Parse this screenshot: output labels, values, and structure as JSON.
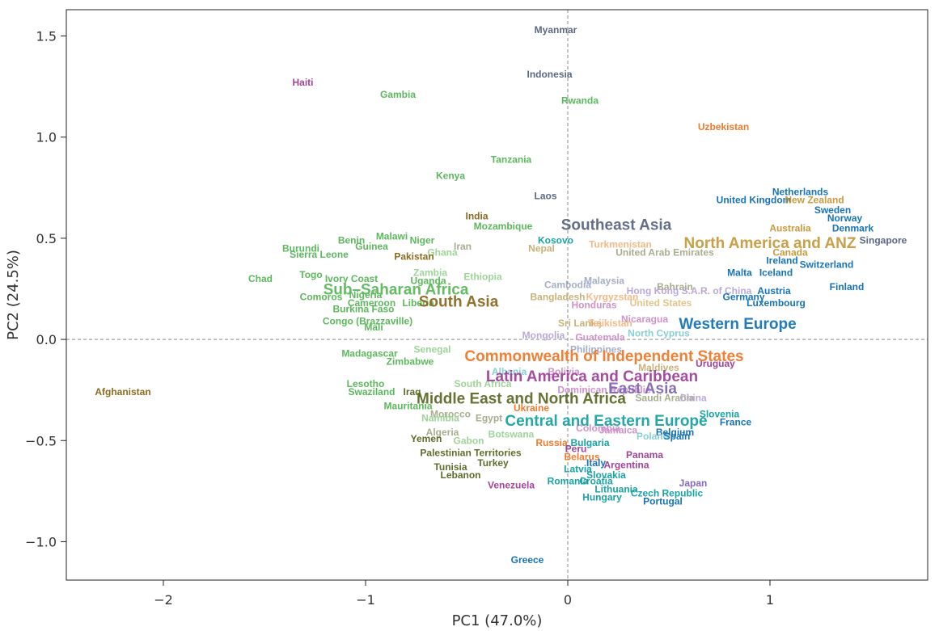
{
  "chart_data": {
    "type": "scatter",
    "title": "",
    "xlabel": "PC1 (47.0%)",
    "ylabel": "PC2 (24.5%)",
    "xlim": [
      -2.48,
      1.78
    ],
    "ylim": [
      -1.19,
      1.63
    ],
    "xticks": [
      {
        "value": -2,
        "label": "−2"
      },
      {
        "value": -1,
        "label": "−1"
      },
      {
        "value": 0,
        "label": "0"
      },
      {
        "value": 1,
        "label": "1"
      }
    ],
    "yticks": [
      {
        "value": -1.0,
        "label": "−1.0"
      },
      {
        "value": -0.5,
        "label": "−0.5"
      },
      {
        "value": 0.0,
        "label": "0.0"
      },
      {
        "value": 0.5,
        "label": "0.5"
      },
      {
        "value": 1.0,
        "label": "1.0"
      },
      {
        "value": 1.5,
        "label": "1.5"
      }
    ],
    "reference_lines": {
      "x": 0,
      "y": 0,
      "style": "dashed"
    },
    "grid": false,
    "colors": {
      "ssa": "#5cb85c",
      "ssa_light": "#9fd39a",
      "sa": "#8b6b1f",
      "sa_light": "#c8b27a",
      "mena": "#5e6c2b",
      "mena_light": "#a8ad8e",
      "sea": "#5b6880",
      "sea_light": "#a6aec7",
      "lac": "#a0449a",
      "lac_light": "#cf92c9",
      "cis": "#f07a2c",
      "cis_light": "#f3b98a",
      "cee": "#1aa3a3",
      "cee_light": "#88cfd3",
      "we": "#1673b8",
      "nanz": "#c79a3e",
      "nanz_light": "#e2c488",
      "ea": "#8268b5",
      "ea_light": "#b9a9d6"
    },
    "regions": [
      {
        "label": "Southeast Asia",
        "x": 0.24,
        "y": 0.57,
        "color": "sea"
      },
      {
        "label": "North America and ANZ",
        "x": 1.0,
        "y": 0.48,
        "color": "nanz"
      },
      {
        "label": "Sub–Saharan Africa",
        "x": -0.85,
        "y": 0.25,
        "color": "ssa"
      },
      {
        "label": "South Asia",
        "x": -0.54,
        "y": 0.19,
        "color": "sa"
      },
      {
        "label": "Western Europe",
        "x": 0.84,
        "y": 0.08,
        "color": "we"
      },
      {
        "label": "Commonwealth of Independent States",
        "x": 0.18,
        "y": -0.08,
        "color": "cis"
      },
      {
        "label": "Latin America and Caribbean",
        "x": 0.12,
        "y": -0.18,
        "color": "lac"
      },
      {
        "label": "East Asia",
        "x": 0.37,
        "y": -0.24,
        "color": "ea"
      },
      {
        "label": "Middle East and North Africa",
        "x": -0.23,
        "y": -0.29,
        "color": "mena"
      },
      {
        "label": "Central and Eastern Europe",
        "x": 0.19,
        "y": -0.4,
        "color": "cee"
      }
    ],
    "points": [
      {
        "label": "Myanmar",
        "x": -0.06,
        "y": 1.53,
        "color": "sea"
      },
      {
        "label": "Indonesia",
        "x": -0.09,
        "y": 1.31,
        "color": "sea"
      },
      {
        "label": "Haiti",
        "x": -1.31,
        "y": 1.27,
        "color": "lac"
      },
      {
        "label": "Gambia",
        "x": -0.84,
        "y": 1.21,
        "color": "ssa"
      },
      {
        "label": "Rwanda",
        "x": 0.06,
        "y": 1.18,
        "color": "ssa"
      },
      {
        "label": "Uzbekistan",
        "x": 0.77,
        "y": 1.05,
        "color": "cis"
      },
      {
        "label": "Tanzania",
        "x": -0.28,
        "y": 0.89,
        "color": "ssa"
      },
      {
        "label": "Kenya",
        "x": -0.58,
        "y": 0.81,
        "color": "ssa"
      },
      {
        "label": "Laos",
        "x": -0.11,
        "y": 0.71,
        "color": "sea"
      },
      {
        "label": "Netherlands",
        "x": 1.15,
        "y": 0.73,
        "color": "we"
      },
      {
        "label": "United Kingdom",
        "x": 0.92,
        "y": 0.69,
        "color": "we"
      },
      {
        "label": "New Zealand",
        "x": 1.22,
        "y": 0.69,
        "color": "nanz"
      },
      {
        "label": "Sweden",
        "x": 1.31,
        "y": 0.64,
        "color": "we"
      },
      {
        "label": "Norway",
        "x": 1.37,
        "y": 0.6,
        "color": "we"
      },
      {
        "label": "Denmark",
        "x": 1.41,
        "y": 0.55,
        "color": "we"
      },
      {
        "label": "Singapore",
        "x": 1.56,
        "y": 0.49,
        "color": "sea"
      },
      {
        "label": "India",
        "x": -0.45,
        "y": 0.61,
        "color": "sa"
      },
      {
        "label": "Mozambique",
        "x": -0.32,
        "y": 0.56,
        "color": "ssa"
      },
      {
        "label": "Australia",
        "x": 1.1,
        "y": 0.55,
        "color": "nanz"
      },
      {
        "label": "Canada",
        "x": 1.1,
        "y": 0.43,
        "color": "nanz"
      },
      {
        "label": "Kosovo",
        "x": -0.06,
        "y": 0.49,
        "color": "cee"
      },
      {
        "label": "Turkmenistan",
        "x": 0.26,
        "y": 0.47,
        "color": "cis_light"
      },
      {
        "label": "United Arab Emirates",
        "x": 0.48,
        "y": 0.43,
        "color": "mena_light"
      },
      {
        "label": "Malawi",
        "x": -0.87,
        "y": 0.51,
        "color": "ssa"
      },
      {
        "label": "Niger",
        "x": -0.72,
        "y": 0.49,
        "color": "ssa"
      },
      {
        "label": "Benin",
        "x": -1.07,
        "y": 0.49,
        "color": "ssa"
      },
      {
        "label": "Guinea",
        "x": -0.97,
        "y": 0.46,
        "color": "ssa"
      },
      {
        "label": "Burundi",
        "x": -1.32,
        "y": 0.45,
        "color": "ssa"
      },
      {
        "label": "Iran",
        "x": -0.52,
        "y": 0.46,
        "color": "mena_light"
      },
      {
        "label": "Ghana",
        "x": -0.62,
        "y": 0.43,
        "color": "ssa_light"
      },
      {
        "label": "Nepal",
        "x": -0.13,
        "y": 0.45,
        "color": "sa_light"
      },
      {
        "label": "Sierra Leone",
        "x": -1.23,
        "y": 0.42,
        "color": "ssa"
      },
      {
        "label": "Pakistan",
        "x": -0.76,
        "y": 0.41,
        "color": "sa"
      },
      {
        "label": "Ireland",
        "x": 1.06,
        "y": 0.39,
        "color": "we"
      },
      {
        "label": "Switzerland",
        "x": 1.28,
        "y": 0.37,
        "color": "we"
      },
      {
        "label": "Malta",
        "x": 0.85,
        "y": 0.33,
        "color": "we"
      },
      {
        "label": "Iceland",
        "x": 1.03,
        "y": 0.33,
        "color": "we"
      },
      {
        "label": "Chad",
        "x": -1.52,
        "y": 0.3,
        "color": "ssa"
      },
      {
        "label": "Togo",
        "x": -1.27,
        "y": 0.32,
        "color": "ssa"
      },
      {
        "label": "Zambia",
        "x": -0.68,
        "y": 0.33,
        "color": "ssa_light"
      },
      {
        "label": "Ivory Coast",
        "x": -1.07,
        "y": 0.3,
        "color": "ssa"
      },
      {
        "label": "Uganda",
        "x": -0.69,
        "y": 0.29,
        "color": "ssa"
      },
      {
        "label": "Ethiopia",
        "x": -0.42,
        "y": 0.31,
        "color": "ssa_light"
      },
      {
        "label": "Malaysia",
        "x": 0.18,
        "y": 0.29,
        "color": "sea_light"
      },
      {
        "label": "Cambodia",
        "x": 0.0,
        "y": 0.27,
        "color": "sea_light"
      },
      {
        "label": "Bahrain",
        "x": 0.53,
        "y": 0.26,
        "color": "mena_light"
      },
      {
        "label": "Finland",
        "x": 1.38,
        "y": 0.26,
        "color": "we"
      },
      {
        "label": "Austria",
        "x": 1.02,
        "y": 0.24,
        "color": "we"
      },
      {
        "label": "Hong Kong S.A.R. of China",
        "x": 0.6,
        "y": 0.24,
        "color": "ea_light"
      },
      {
        "label": "Nigeria",
        "x": -1.0,
        "y": 0.22,
        "color": "ssa"
      },
      {
        "label": "Comoros",
        "x": -1.22,
        "y": 0.21,
        "color": "ssa"
      },
      {
        "label": "Kyrgyzstan",
        "x": 0.22,
        "y": 0.21,
        "color": "cis_light"
      },
      {
        "label": "Bangladesh",
        "x": -0.05,
        "y": 0.21,
        "color": "sa_light"
      },
      {
        "label": "Germany",
        "x": 0.87,
        "y": 0.21,
        "color": "we"
      },
      {
        "label": "Cameroon",
        "x": -0.97,
        "y": 0.18,
        "color": "ssa"
      },
      {
        "label": "Liberia",
        "x": -0.74,
        "y": 0.18,
        "color": "ssa"
      },
      {
        "label": "Honduras",
        "x": 0.13,
        "y": 0.17,
        "color": "lac_light"
      },
      {
        "label": "United States",
        "x": 0.46,
        "y": 0.18,
        "color": "nanz_light"
      },
      {
        "label": "Luxembourg",
        "x": 1.03,
        "y": 0.18,
        "color": "we"
      },
      {
        "label": "Burkina Faso",
        "x": -1.01,
        "y": 0.15,
        "color": "ssa"
      },
      {
        "label": "Nicaragua",
        "x": 0.38,
        "y": 0.1,
        "color": "lac_light"
      },
      {
        "label": "Congo (Brazzaville)",
        "x": -0.99,
        "y": 0.09,
        "color": "ssa"
      },
      {
        "label": "Sri Lanka",
        "x": 0.06,
        "y": 0.08,
        "color": "sa_light"
      },
      {
        "label": "Tajikistan",
        "x": 0.21,
        "y": 0.08,
        "color": "cis_light"
      },
      {
        "label": "Mali",
        "x": -0.96,
        "y": 0.06,
        "color": "ssa"
      },
      {
        "label": "North Cyprus",
        "x": 0.45,
        "y": 0.03,
        "color": "cee_light"
      },
      {
        "label": "Mongolia",
        "x": -0.12,
        "y": 0.02,
        "color": "ea_light"
      },
      {
        "label": "Guatemala",
        "x": 0.16,
        "y": 0.01,
        "color": "lac_light"
      },
      {
        "label": "Philippines",
        "x": 0.14,
        "y": -0.05,
        "color": "sea_light"
      },
      {
        "label": "Madagascar",
        "x": -0.98,
        "y": -0.07,
        "color": "ssa"
      },
      {
        "label": "Senegal",
        "x": -0.67,
        "y": -0.05,
        "color": "ssa_light"
      },
      {
        "label": "Zimbabwe",
        "x": -0.78,
        "y": -0.11,
        "color": "ssa"
      },
      {
        "label": "Uruguay",
        "x": 0.73,
        "y": -0.12,
        "color": "lac"
      },
      {
        "label": "Maldives",
        "x": 0.45,
        "y": -0.14,
        "color": "sa_light"
      },
      {
        "label": "Bolivia",
        "x": -0.02,
        "y": -0.16,
        "color": "lac_light"
      },
      {
        "label": "Albania",
        "x": -0.29,
        "y": -0.16,
        "color": "cee_light"
      },
      {
        "label": "South Africa",
        "x": -0.42,
        "y": -0.22,
        "color": "ssa_light"
      },
      {
        "label": "Lesotho",
        "x": -1.0,
        "y": -0.22,
        "color": "ssa"
      },
      {
        "label": "Afghanistan",
        "x": -2.2,
        "y": -0.26,
        "color": "sa"
      },
      {
        "label": "Swaziland",
        "x": -0.97,
        "y": -0.26,
        "color": "ssa"
      },
      {
        "label": "Iraq",
        "x": -0.77,
        "y": -0.26,
        "color": "mena"
      },
      {
        "label": "Dominican Republic",
        "x": 0.18,
        "y": -0.25,
        "color": "lac_light"
      },
      {
        "label": "Saudi Arabia",
        "x": 0.48,
        "y": -0.29,
        "color": "mena_light"
      },
      {
        "label": "China",
        "x": 0.62,
        "y": -0.29,
        "color": "ea_light"
      },
      {
        "label": "Mauritania",
        "x": -0.79,
        "y": -0.33,
        "color": "ssa"
      },
      {
        "label": "Ukraine",
        "x": -0.18,
        "y": -0.34,
        "color": "cis"
      },
      {
        "label": "Slovenia",
        "x": 0.75,
        "y": -0.37,
        "color": "cee"
      },
      {
        "label": "Morocco",
        "x": -0.58,
        "y": -0.37,
        "color": "mena_light"
      },
      {
        "label": "Namibia",
        "x": -0.63,
        "y": -0.39,
        "color": "ssa_light"
      },
      {
        "label": "Egypt",
        "x": -0.39,
        "y": -0.39,
        "color": "mena_light"
      },
      {
        "label": "France",
        "x": 0.83,
        "y": -0.41,
        "color": "we"
      },
      {
        "label": "Jamaica",
        "x": 0.25,
        "y": -0.45,
        "color": "lac_light"
      },
      {
        "label": "Belgium",
        "x": 0.53,
        "y": -0.46,
        "color": "we"
      },
      {
        "label": "Colombia",
        "x": 0.15,
        "y": -0.44,
        "color": "lac_light"
      },
      {
        "label": "Algeria",
        "x": -0.62,
        "y": -0.46,
        "color": "mena_light"
      },
      {
        "label": "Botswana",
        "x": -0.28,
        "y": -0.47,
        "color": "ssa_light"
      },
      {
        "label": "Poland",
        "x": 0.42,
        "y": -0.48,
        "color": "cee_light"
      },
      {
        "label": "Spain",
        "x": 0.54,
        "y": -0.48,
        "color": "we"
      },
      {
        "label": "Yemen",
        "x": -0.7,
        "y": -0.49,
        "color": "mena"
      },
      {
        "label": "Gabon",
        "x": -0.49,
        "y": -0.5,
        "color": "ssa_light"
      },
      {
        "label": "Russia",
        "x": -0.08,
        "y": -0.51,
        "color": "cis"
      },
      {
        "label": "Bulgaria",
        "x": 0.11,
        "y": -0.51,
        "color": "cee"
      },
      {
        "label": "Peru",
        "x": 0.04,
        "y": -0.54,
        "color": "lac"
      },
      {
        "label": "Palestinian Territories",
        "x": -0.48,
        "y": -0.56,
        "color": "mena"
      },
      {
        "label": "Panama",
        "x": 0.38,
        "y": -0.57,
        "color": "lac"
      },
      {
        "label": "Belarus",
        "x": 0.07,
        "y": -0.58,
        "color": "cis"
      },
      {
        "label": "Turkey",
        "x": -0.37,
        "y": -0.61,
        "color": "mena"
      },
      {
        "label": "Italy",
        "x": 0.14,
        "y": -0.61,
        "color": "we"
      },
      {
        "label": "Argentina",
        "x": 0.29,
        "y": -0.62,
        "color": "lac"
      },
      {
        "label": "Tunisia",
        "x": -0.58,
        "y": -0.63,
        "color": "mena"
      },
      {
        "label": "Latvia",
        "x": 0.05,
        "y": -0.64,
        "color": "cee"
      },
      {
        "label": "Slovakia",
        "x": 0.19,
        "y": -0.67,
        "color": "cee"
      },
      {
        "label": "Lebanon",
        "x": -0.53,
        "y": -0.67,
        "color": "mena"
      },
      {
        "label": "Romania",
        "x": 0.0,
        "y": -0.7,
        "color": "cee"
      },
      {
        "label": "Croatia",
        "x": 0.14,
        "y": -0.7,
        "color": "cee"
      },
      {
        "label": "Venezuela",
        "x": -0.28,
        "y": -0.72,
        "color": "lac"
      },
      {
        "label": "Japan",
        "x": 0.62,
        "y": -0.71,
        "color": "ea"
      },
      {
        "label": "Lithuania",
        "x": 0.24,
        "y": -0.74,
        "color": "cee"
      },
      {
        "label": "Czech Republic",
        "x": 0.49,
        "y": -0.76,
        "color": "cee"
      },
      {
        "label": "Hungary",
        "x": 0.17,
        "y": -0.78,
        "color": "cee"
      },
      {
        "label": "Portugal",
        "x": 0.47,
        "y": -0.8,
        "color": "we"
      },
      {
        "label": "Greece",
        "x": -0.2,
        "y": -1.09,
        "color": "we"
      }
    ]
  }
}
